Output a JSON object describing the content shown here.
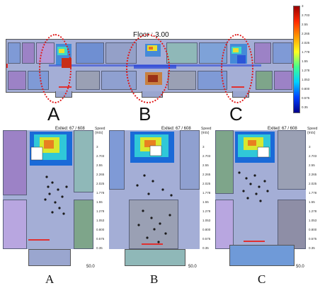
{
  "overview": {
    "floor_label": "Floor : 3.00",
    "zone_labels": [
      "A",
      "B",
      "C"
    ]
  },
  "colorbar": {
    "ticks": [
      "3",
      "2.703",
      "2.55",
      "2.265",
      "2.025",
      "1.778",
      "1.55",
      "1.278",
      "1.053",
      "0.800",
      "0.575",
      "0.35"
    ]
  },
  "panels": [
    {
      "caption": "A",
      "exited": "Exited:  67 / 608",
      "speed_header": "Speed\n(m/s)",
      "ticks": [
        "3",
        "2.703",
        "2.55",
        "2.265",
        "2.025",
        "1.778",
        "1.55",
        "1.278",
        "1.053",
        "0.800",
        "0.575",
        "0.35"
      ],
      "time": "50.0"
    },
    {
      "caption": "B",
      "exited": "Exited:  67 / 608",
      "speed_header": "Speed\n(m/s)",
      "ticks": [
        "3",
        "2.703",
        "2.55",
        "2.265",
        "2.025",
        "1.778",
        "1.55",
        "1.278",
        "1.053",
        "0.800",
        "0.575",
        "0.35"
      ],
      "time": "50.0"
    },
    {
      "caption": "C",
      "exited": "Exited:  67 / 608",
      "speed_header": "Speed\n(m/s)",
      "ticks": [
        "3",
        "2.703",
        "2.55",
        "2.265",
        "2.025",
        "1.778",
        "1.55",
        "1.278",
        "1.053",
        "0.800",
        "0.575",
        "0.35"
      ],
      "time": "50.0"
    }
  ],
  "colors": {
    "corridor": "#9aa6cf",
    "room_purple": "#9c82c6",
    "room_blue": "#7f9ad6",
    "room_teal": "#8fb8b8",
    "room_green": "#7ea58a",
    "room_gray": "#9aa0b4",
    "door_red": "#e03030",
    "ellipse_red": "#e01818"
  }
}
